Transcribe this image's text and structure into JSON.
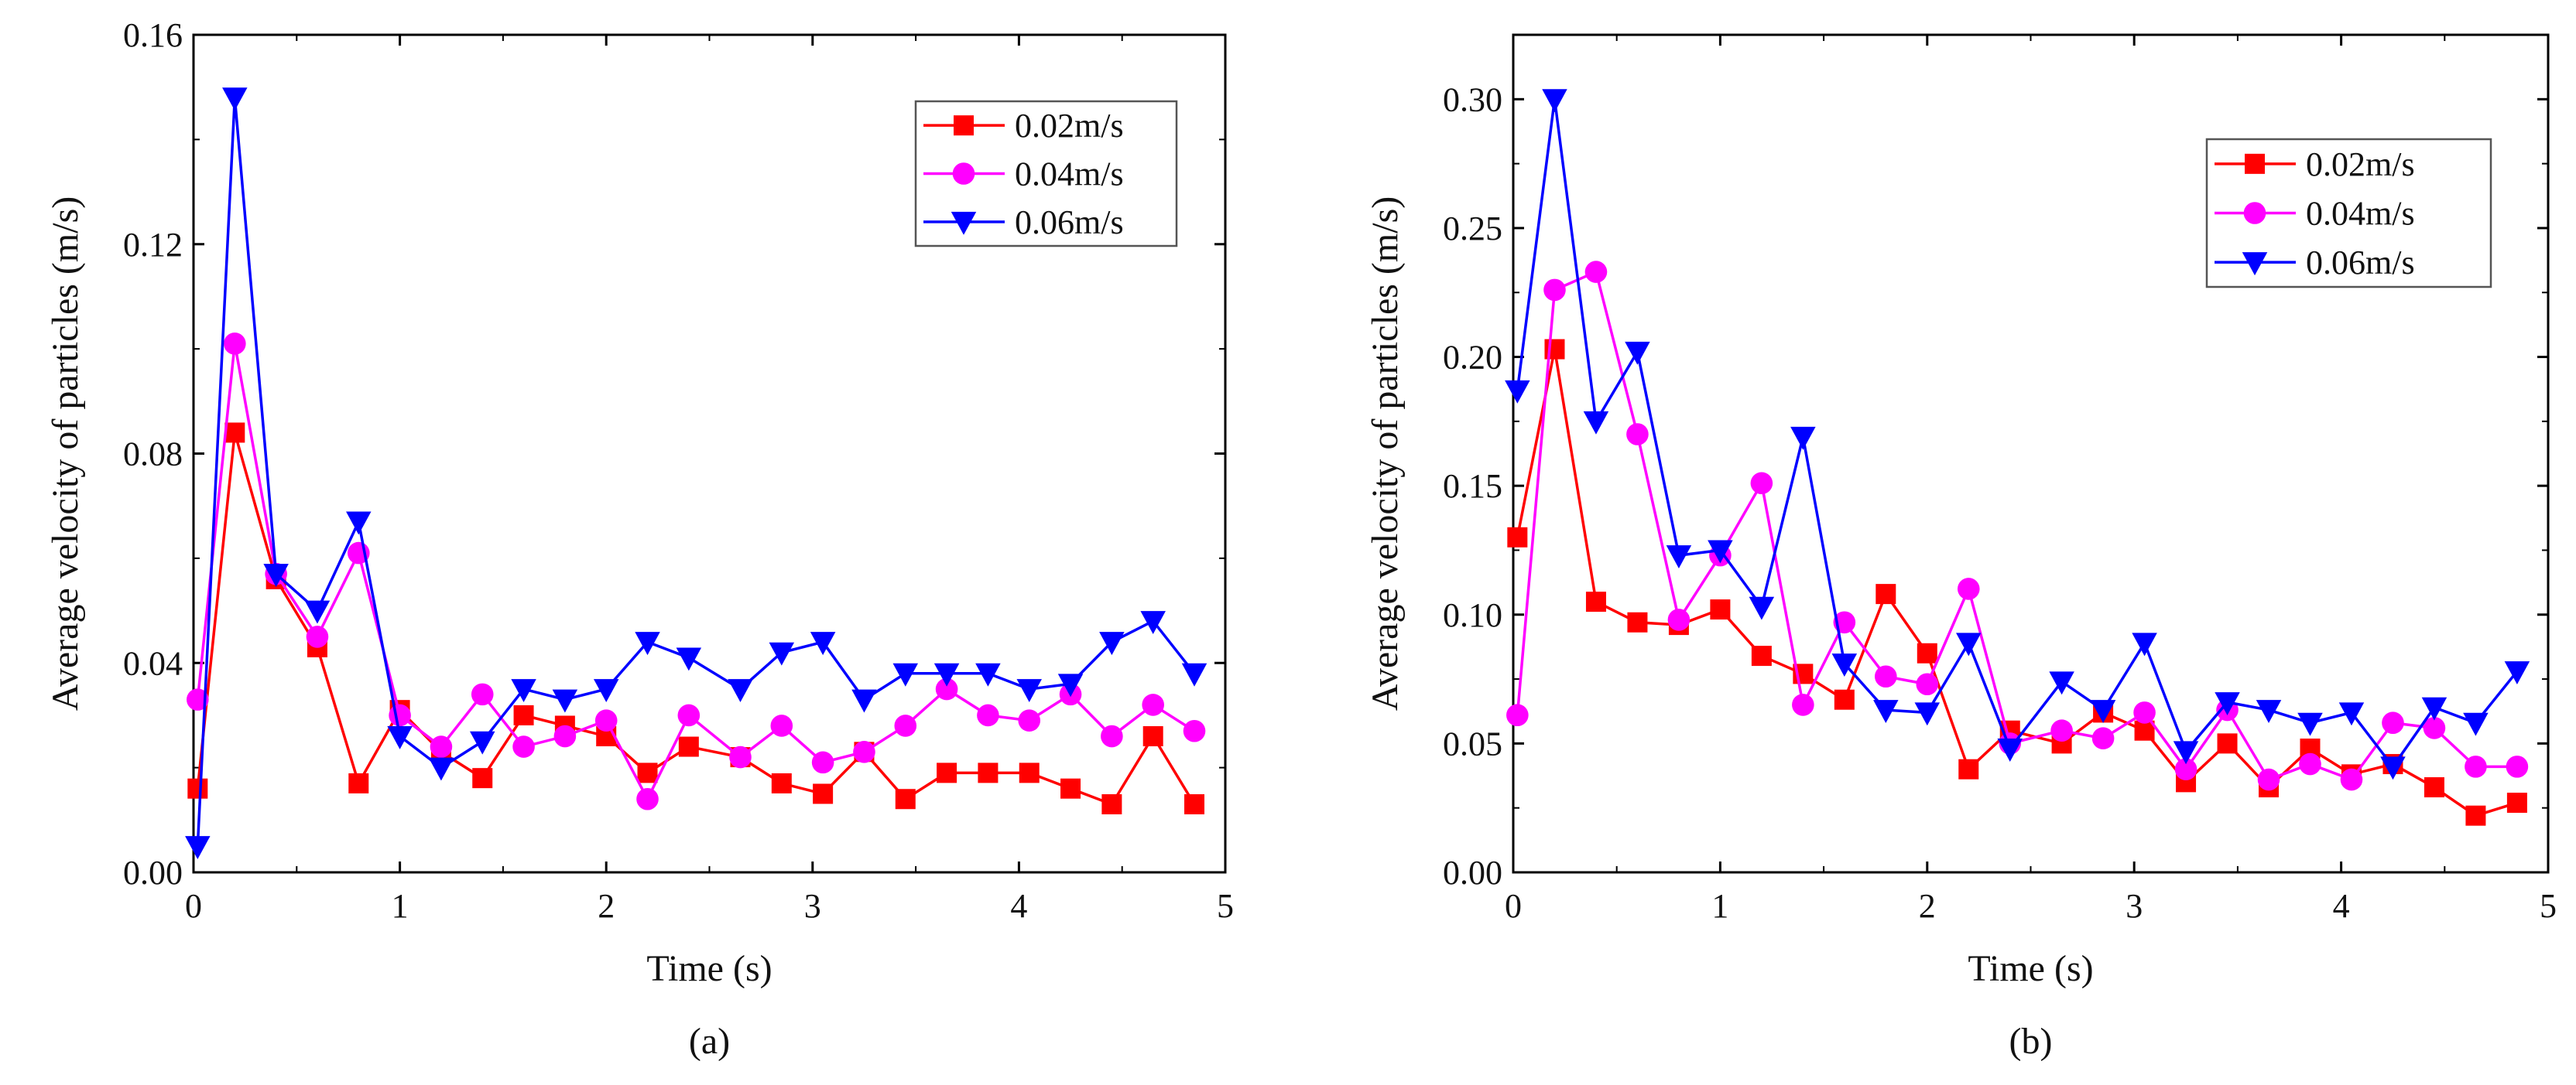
{
  "chart_data": [
    {
      "type": "line",
      "caption": "(a)",
      "xlabel": "Time (s)",
      "ylabel": "Average velocity of particles (m/s)",
      "xlim": [
        0,
        5
      ],
      "ylim": [
        0,
        0.16
      ],
      "xticks": [
        "0",
        "1",
        "2",
        "3",
        "4",
        "5"
      ],
      "yticks": [
        "0.00",
        "0.04",
        "0.08",
        "0.12",
        "0.16"
      ],
      "legend_position": "top-right",
      "x": [
        0.02,
        0.2,
        0.4,
        0.6,
        0.8,
        1.0,
        1.2,
        1.4,
        1.6,
        1.8,
        2.0,
        2.2,
        2.4,
        2.65,
        2.85,
        3.05,
        3.25,
        3.45,
        3.65,
        3.85,
        4.05,
        4.25,
        4.45,
        4.65,
        4.85
      ],
      "series": [
        {
          "name": "0.02m/s",
          "color": "#ff0000",
          "marker": "square",
          "values": [
            0.016,
            0.084,
            0.056,
            0.043,
            0.017,
            0.031,
            0.023,
            0.018,
            0.03,
            0.028,
            0.026,
            0.019,
            0.024,
            0.022,
            0.017,
            0.015,
            0.023,
            0.014,
            0.019,
            0.019,
            0.019,
            0.016,
            0.013,
            0.026,
            0.013
          ]
        },
        {
          "name": "0.04m/s",
          "color": "#ff00ff",
          "marker": "circle",
          "values": [
            0.033,
            0.101,
            0.057,
            0.045,
            0.061,
            0.03,
            0.024,
            0.034,
            0.024,
            0.026,
            0.029,
            0.014,
            0.03,
            0.022,
            0.028,
            0.021,
            0.023,
            0.028,
            0.035,
            0.03,
            0.029,
            0.034,
            0.026,
            0.032,
            0.027
          ]
        },
        {
          "name": "0.06m/s",
          "color": "#0000ff",
          "marker": "triangle-down",
          "values": [
            0.005,
            0.148,
            0.057,
            0.05,
            0.067,
            0.026,
            0.02,
            0.025,
            0.035,
            0.033,
            0.035,
            0.044,
            0.041,
            0.035,
            0.042,
            0.044,
            0.033,
            0.038,
            0.038,
            0.038,
            0.035,
            0.036,
            0.044,
            0.048,
            0.038
          ]
        }
      ]
    },
    {
      "type": "line",
      "caption": "(b)",
      "xlabel": "Time (s)",
      "ylabel": "Average velocity of particles (m/s)",
      "xlim": [
        0,
        5
      ],
      "ylim": [
        0,
        0.325
      ],
      "xticks": [
        "0",
        "1",
        "2",
        "3",
        "4",
        "5"
      ],
      "yticks": [
        "0.00",
        "0.05",
        "0.10",
        "0.15",
        "0.20",
        "0.25",
        "0.30"
      ],
      "legend_position": "top-right",
      "x": [
        0.02,
        0.2,
        0.4,
        0.6,
        0.8,
        1.0,
        1.2,
        1.4,
        1.6,
        1.8,
        2.0,
        2.2,
        2.4,
        2.65,
        2.85,
        3.05,
        3.25,
        3.45,
        3.65,
        3.85,
        4.05,
        4.25,
        4.45,
        4.65,
        4.85
      ],
      "series": [
        {
          "name": "0.02m/s",
          "color": "#ff0000",
          "marker": "square",
          "values": [
            0.13,
            0.203,
            0.105,
            0.097,
            0.096,
            0.102,
            0.084,
            0.077,
            0.067,
            0.108,
            0.085,
            0.04,
            0.055,
            0.05,
            0.062,
            0.055,
            0.035,
            0.05,
            0.033,
            0.048,
            0.038,
            0.042,
            0.033,
            0.022,
            0.027
          ]
        },
        {
          "name": "0.04m/s",
          "color": "#ff00ff",
          "marker": "circle",
          "values": [
            0.061,
            0.226,
            0.233,
            0.17,
            0.098,
            0.123,
            0.151,
            0.065,
            0.097,
            0.076,
            0.073,
            0.11,
            0.05,
            0.055,
            0.052,
            0.062,
            0.04,
            0.063,
            0.036,
            0.042,
            0.036,
            0.058,
            0.056,
            0.041,
            0.041
          ]
        },
        {
          "name": "0.06m/s",
          "color": "#0000ff",
          "marker": "triangle-down",
          "values": [
            0.187,
            0.3,
            0.175,
            0.202,
            0.123,
            0.125,
            0.103,
            0.169,
            0.081,
            0.063,
            0.062,
            0.089,
            0.048,
            0.074,
            0.063,
            0.089,
            0.047,
            0.066,
            0.063,
            0.058,
            0.062,
            0.041,
            0.064,
            0.058,
            0.078
          ]
        }
      ]
    }
  ]
}
